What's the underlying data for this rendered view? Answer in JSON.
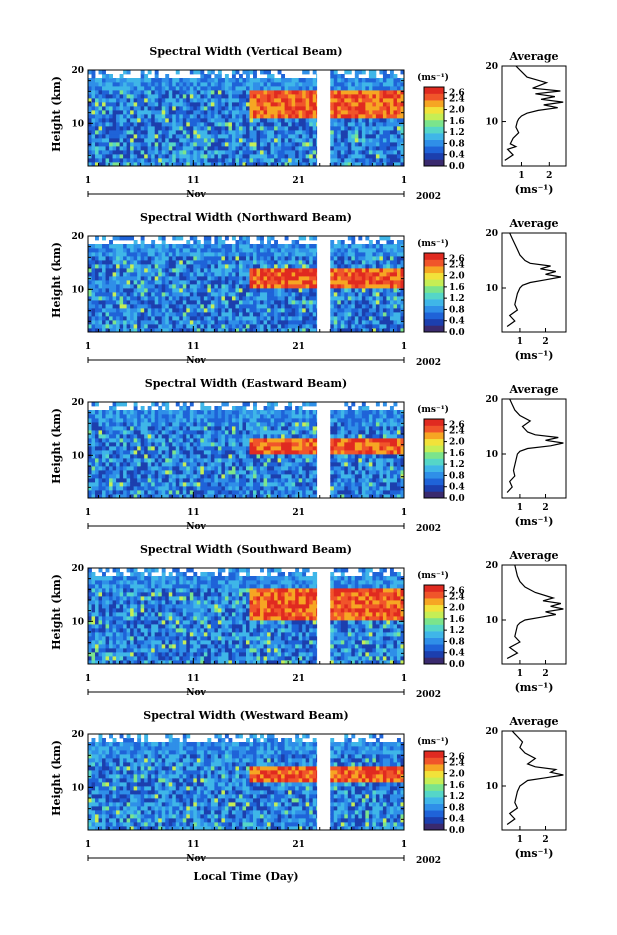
{
  "figure": {
    "xlabel": "Local Time (Day)"
  },
  "chart_data": [
    {
      "type": "heatmap",
      "title": "Spectral Width (Vertical Beam)",
      "ylabel": "Height (km)",
      "yticks": [
        "20",
        "10"
      ],
      "xticks": [
        "1",
        "11",
        "21",
        "1"
      ],
      "month_label": "Nov",
      "year_label": "2002",
      "colorbar": {
        "unit": "(ms⁻¹)",
        "ticks": [
          "2.6",
          "2.4",
          "2.0",
          "1.6",
          "1.2",
          "0.8",
          "0.4",
          "0.0"
        ],
        "range": [
          0,
          2.8
        ]
      },
      "strong_layer_km": [
        11,
        16
      ],
      "profile": {
        "title": "Average",
        "xticks": [
          "1",
          "2"
        ],
        "xlabel": "(ms⁻¹)",
        "yticks": [
          "20",
          "10"
        ],
        "xlim": [
          0.3,
          2.6
        ],
        "ylim": [
          2,
          20
        ],
        "x": [
          0.4,
          0.7,
          0.5,
          0.8,
          0.6,
          0.7,
          0.9,
          0.8,
          0.85,
          0.9,
          1.0,
          1.2,
          1.6,
          2.3,
          1.8,
          2.5,
          1.7,
          2.2,
          1.5,
          2.4,
          1.4,
          1.9,
          1.2,
          1.0,
          0.8
        ],
        "height_km": [
          3,
          4,
          5,
          5.5,
          6,
          7,
          8,
          9,
          10,
          10.5,
          11,
          11.5,
          12,
          12.5,
          13,
          13.5,
          14,
          14.5,
          15,
          15.5,
          16,
          17,
          18,
          19,
          20
        ]
      }
    },
    {
      "type": "heatmap",
      "title": "Spectral Width (Northward Beam)",
      "ylabel": "Height (km)",
      "yticks": [
        "20",
        "10"
      ],
      "xticks": [
        "1",
        "11",
        "21",
        "1"
      ],
      "month_label": "Nov",
      "year_label": "2002",
      "colorbar": {
        "unit": "(ms⁻¹)",
        "ticks": [
          "2.6",
          "2.4",
          "2.0",
          "1.6",
          "1.2",
          "0.8",
          "0.4",
          "0.0"
        ],
        "range": [
          0,
          2.8
        ]
      },
      "strong_layer_km": [
        10,
        14
      ],
      "profile": {
        "title": "Average",
        "xticks": [
          "1",
          "2"
        ],
        "xlabel": "(ms⁻¹)",
        "yticks": [
          "20",
          "10"
        ],
        "xlim": [
          0.3,
          2.8
        ],
        "ylim": [
          2,
          20
        ],
        "x": [
          0.5,
          0.8,
          0.6,
          0.9,
          0.8,
          0.85,
          0.9,
          1.0,
          1.1,
          1.4,
          2.0,
          2.6,
          2.0,
          2.4,
          1.8,
          2.2,
          1.4,
          1.2,
          1.0,
          0.9,
          0.8,
          0.7,
          0.6
        ],
        "height_km": [
          3,
          4,
          5,
          6,
          7,
          8,
          9,
          10,
          10.5,
          11,
          11.5,
          12,
          12.5,
          13,
          13.5,
          14,
          14.5,
          15,
          16,
          17,
          18,
          19,
          20
        ]
      }
    },
    {
      "type": "heatmap",
      "title": "Spectral Width (Eastward Beam)",
      "ylabel": "Height (km)",
      "yticks": [
        "20",
        "10"
      ],
      "xticks": [
        "1",
        "11",
        "21",
        "1"
      ],
      "month_label": "Nov",
      "year_label": "2002",
      "colorbar": {
        "unit": "(ms⁻¹)",
        "ticks": [
          "2.6",
          "2.4",
          "2.0",
          "1.6",
          "1.2",
          "0.8",
          "0.4",
          "0.0"
        ],
        "range": [
          0,
          2.8
        ]
      },
      "strong_layer_km": [
        10,
        13
      ],
      "profile": {
        "title": "Average",
        "xticks": [
          "1",
          "2"
        ],
        "xlabel": "(ms⁻¹)",
        "yticks": [
          "20",
          "10"
        ],
        "xlim": [
          0.3,
          2.8
        ],
        "ylim": [
          2,
          20
        ],
        "x": [
          0.5,
          0.7,
          0.6,
          0.8,
          0.75,
          0.8,
          0.85,
          0.9,
          1.0,
          1.3,
          2.2,
          2.7,
          2.0,
          2.5,
          1.6,
          1.3,
          1.1,
          1.4,
          1.0,
          0.9,
          0.8,
          0.7,
          0.6
        ],
        "height_km": [
          3,
          4,
          5,
          6,
          7,
          8,
          9,
          10,
          10.5,
          11,
          11.5,
          12,
          12.5,
          13,
          13.5,
          14,
          15,
          16,
          17,
          17.5,
          18,
          19,
          20
        ]
      }
    },
    {
      "type": "heatmap",
      "title": "Spectral Width (Southward Beam)",
      "ylabel": "Height (km)",
      "yticks": [
        "20",
        "10"
      ],
      "xticks": [
        "1",
        "11",
        "21",
        "1"
      ],
      "month_label": "Nov",
      "year_label": "2002",
      "colorbar": {
        "unit": "(ms⁻¹)",
        "ticks": [
          "2.6",
          "2.4",
          "2.0",
          "1.6",
          "1.2",
          "0.8",
          "0.4",
          "0.0"
        ],
        "range": [
          0,
          2.8
        ]
      },
      "strong_layer_km": [
        10,
        16
      ],
      "profile": {
        "title": "Average",
        "xticks": [
          "1",
          "2"
        ],
        "xlabel": "(ms⁻¹)",
        "yticks": [
          "20",
          "10"
        ],
        "xlim": [
          0.3,
          2.8
        ],
        "ylim": [
          2,
          20
        ],
        "x": [
          0.5,
          0.9,
          0.6,
          1.0,
          0.8,
          0.85,
          0.9,
          1.0,
          1.2,
          1.8,
          2.4,
          2.0,
          2.7,
          2.2,
          2.6,
          1.9,
          2.3,
          1.6,
          1.2,
          1.0,
          0.9,
          0.8
        ],
        "height_km": [
          3,
          4,
          5,
          6,
          7,
          8,
          9,
          9.5,
          10,
          10.5,
          11,
          11.5,
          12,
          12.5,
          13,
          13.5,
          14,
          15,
          16,
          17,
          18,
          20
        ]
      }
    },
    {
      "type": "heatmap",
      "title": "Spectral Width (Westward Beam)",
      "ylabel": "Height (km)",
      "yticks": [
        "20",
        "10"
      ],
      "xticks": [
        "1",
        "11",
        "21",
        "1"
      ],
      "month_label": "Nov",
      "year_label": "2002",
      "colorbar": {
        "unit": "(ms⁻¹)",
        "ticks": [
          "2.6",
          "2.4",
          "2.0",
          "1.6",
          "1.2",
          "0.8",
          "0.4",
          "0.0"
        ],
        "range": [
          0,
          2.8
        ]
      },
      "strong_layer_km": [
        11,
        14
      ],
      "profile": {
        "title": "Average",
        "xticks": [
          "1",
          "2"
        ],
        "xlabel": "(ms⁻¹)",
        "yticks": [
          "20",
          "10"
        ],
        "xlim": [
          0.3,
          2.8
        ],
        "ylim": [
          2,
          20
        ],
        "x": [
          0.5,
          0.8,
          0.6,
          0.9,
          0.8,
          0.85,
          0.9,
          1.0,
          1.3,
          2.0,
          2.7,
          2.2,
          2.4,
          1.6,
          1.3,
          1.6,
          1.2,
          1.0,
          1.1,
          0.9,
          0.8,
          0.7
        ],
        "height_km": [
          3,
          4,
          5,
          6,
          7,
          8,
          9,
          10,
          11,
          11.5,
          12,
          12.5,
          13,
          13.5,
          14,
          15,
          16,
          17,
          18,
          19,
          19.5,
          20
        ]
      }
    }
  ]
}
